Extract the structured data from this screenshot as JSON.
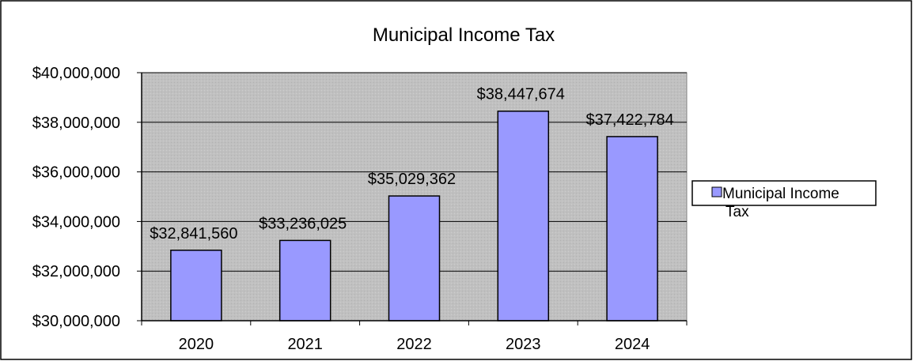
{
  "chart_data": {
    "type": "bar",
    "title": "Municipal Income Tax",
    "xlabel": "",
    "ylabel": "",
    "categories": [
      "2020",
      "2021",
      "2022",
      "2023",
      "2024"
    ],
    "series": [
      {
        "name": "Municipal Income Tax",
        "values": [
          32841560,
          33236025,
          35029362,
          38447674,
          37422784
        ],
        "data_labels": [
          "$32,841,560",
          "$33,236,025",
          "$35,029,362",
          "$38,447,674",
          "$37,422,784"
        ]
      }
    ],
    "ylim": [
      30000000,
      40000000
    ],
    "y_ticks": [
      30000000,
      32000000,
      34000000,
      36000000,
      38000000,
      40000000
    ],
    "y_tick_labels": [
      "$30,000,000",
      "$32,000,000",
      "$34,000,000",
      "$36,000,000",
      "$38,000,000",
      "$40,000,000"
    ],
    "grid": true,
    "legend": {
      "placement": "right",
      "lines": [
        "Municipal Income",
        "Tax"
      ]
    },
    "colors": {
      "bar_fill": "#9999ff",
      "bar_stroke": "#000000",
      "plot_bg": "#c0c0c0",
      "grid": "#000000"
    }
  }
}
